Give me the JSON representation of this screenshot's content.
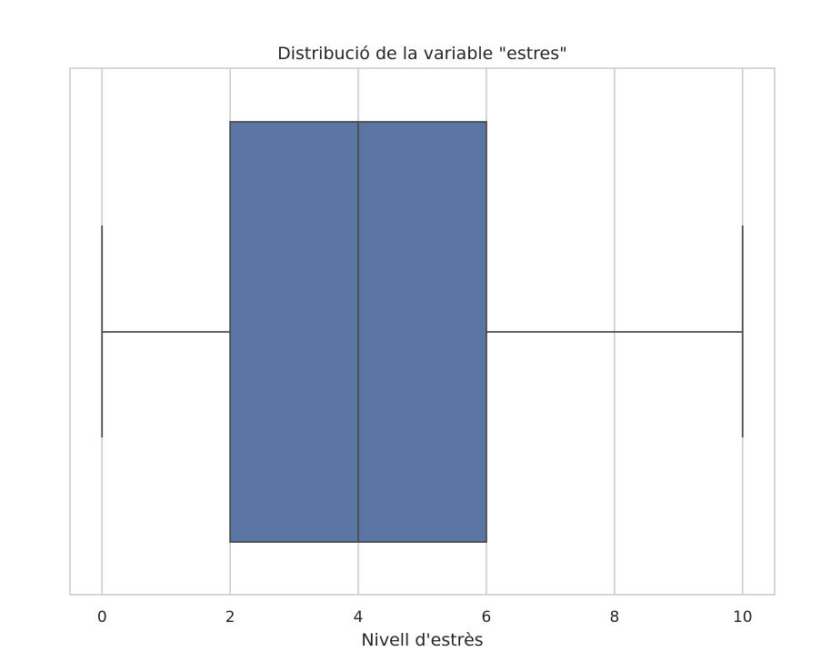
{
  "chart_data": {
    "type": "boxplot",
    "title": "Distribució de la variable \"estres\"",
    "xlabel": "Nivell d'estrès",
    "ylabel": "",
    "orientation": "horizontal",
    "xlim": [
      -0.5,
      10.5
    ],
    "xticks": [
      0,
      2,
      4,
      6,
      8,
      10
    ],
    "xtick_labels": [
      "0",
      "2",
      "4",
      "6",
      "8",
      "10"
    ],
    "grid": true,
    "box": {
      "whisker_low": 0,
      "q1": 2,
      "median": 4,
      "q3": 6,
      "whisker_high": 10
    },
    "colors": {
      "box_fill": "#5975a4",
      "line": "#4c4c4c",
      "grid": "#cccccc",
      "spine": "#cccccc",
      "text": "#262626"
    }
  }
}
